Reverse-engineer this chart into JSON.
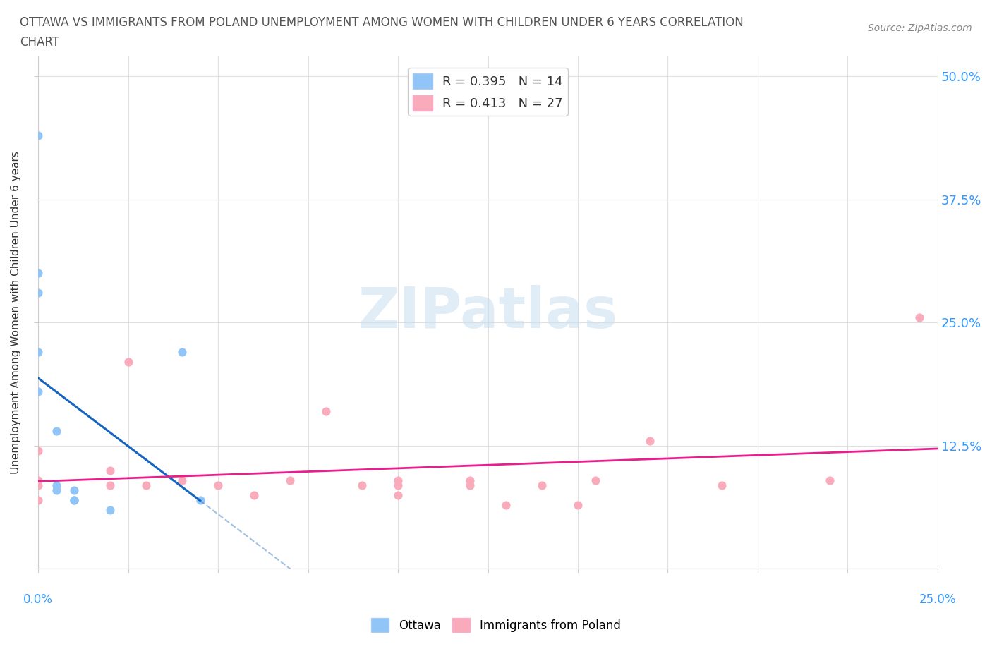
{
  "title_line1": "OTTAWA VS IMMIGRANTS FROM POLAND UNEMPLOYMENT AMONG WOMEN WITH CHILDREN UNDER 6 YEARS CORRELATION",
  "title_line2": "CHART",
  "source": "Source: ZipAtlas.com",
  "ylabel": "Unemployment Among Women with Children Under 6 years",
  "ytick_labels": [
    "",
    "12.5%",
    "25.0%",
    "37.5%",
    "50.0%"
  ],
  "ytick_values": [
    0,
    0.125,
    0.25,
    0.375,
    0.5
  ],
  "xlim": [
    0.0,
    0.25
  ],
  "ylim": [
    0.0,
    0.52
  ],
  "watermark_zip": "ZIP",
  "watermark_atlas": "atlas",
  "ottawa_color": "#92C5F7",
  "poland_color": "#F9AABB",
  "trend_ottawa_color": "#1565C0",
  "trend_poland_color": "#E91E8C",
  "ottawa_x": [
    0.0,
    0.0,
    0.0,
    0.0,
    0.0,
    0.005,
    0.005,
    0.005,
    0.01,
    0.01,
    0.01,
    0.04,
    0.045,
    0.02
  ],
  "ottawa_y": [
    0.44,
    0.3,
    0.28,
    0.22,
    0.18,
    0.14,
    0.085,
    0.08,
    0.08,
    0.07,
    0.07,
    0.22,
    0.07,
    0.06
  ],
  "poland_x": [
    0.0,
    0.0,
    0.0,
    0.0,
    0.02,
    0.02,
    0.025,
    0.03,
    0.04,
    0.05,
    0.06,
    0.07,
    0.08,
    0.09,
    0.1,
    0.1,
    0.1,
    0.12,
    0.12,
    0.13,
    0.14,
    0.15,
    0.155,
    0.17,
    0.19,
    0.22,
    0.245
  ],
  "poland_y": [
    0.12,
    0.09,
    0.085,
    0.07,
    0.1,
    0.085,
    0.21,
    0.085,
    0.09,
    0.085,
    0.075,
    0.09,
    0.16,
    0.085,
    0.075,
    0.085,
    0.09,
    0.085,
    0.09,
    0.065,
    0.085,
    0.065,
    0.09,
    0.13,
    0.085,
    0.09,
    0.255
  ],
  "bg_color": "#FFFFFF",
  "grid_color": "#E0E0E0",
  "legend_r1_text": "R = 0.395   N = 14",
  "legend_r2_text": "R = 0.413   N = 27"
}
